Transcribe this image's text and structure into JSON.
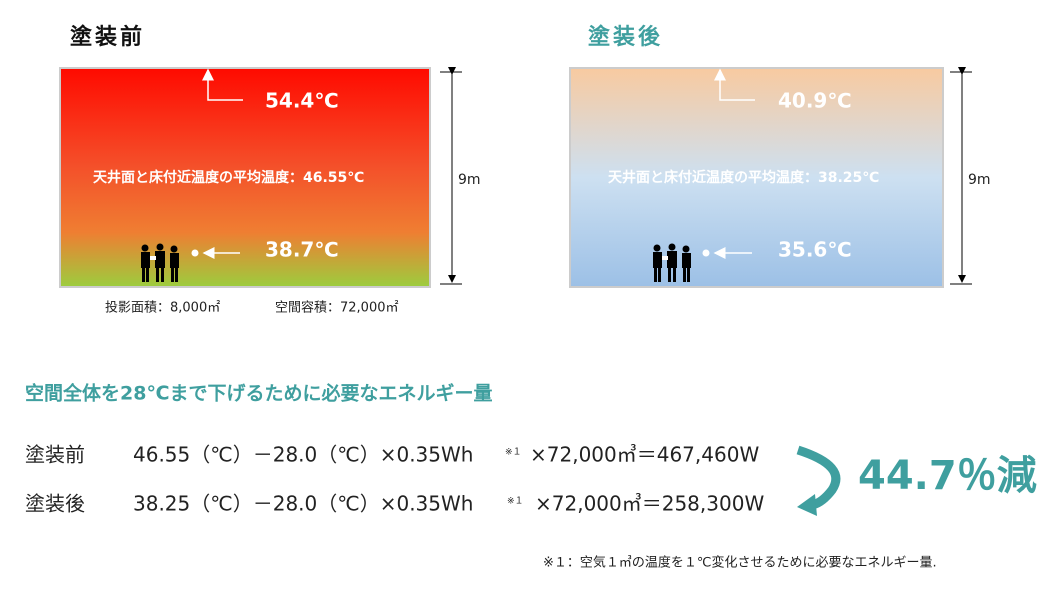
{
  "before": {
    "title": "塗装前",
    "ceiling_temp": "54.4℃",
    "average_label": "天井面と床付近温度の平均温度：46.55℃",
    "floor_temp": "38.7℃",
    "height": "9m"
  },
  "after": {
    "title": "塗装後",
    "ceiling_temp": "40.9℃",
    "average_label": "天井面と床付近温度の平均温度：38.25℃",
    "floor_temp": "35.6℃",
    "height": "9m"
  },
  "areas": [
    "投影面積：8,000㎡",
    "空間容積：72,000㎡"
  ],
  "calculation": {
    "heading": "空間全体を28℃まで下げるために必要なエネルギー量",
    "rows": [
      {
        "label": "塗装前",
        "formula": "46.55（℃）－28.0（℃）×0.35Wh",
        "note": "※１",
        "result": "×72,000㎥＝467,460W"
      },
      {
        "label": "塗装後",
        "formula": "38.25（℃）－28.0（℃）×0.35Wh",
        "note": "※１",
        "result": "×72,000㎥＝258,300W"
      }
    ],
    "reduction": "44.7％減"
  },
  "footnote": "※１：空気１㎥の温度を１℃変化させるために必要なエネルギー量."
}
